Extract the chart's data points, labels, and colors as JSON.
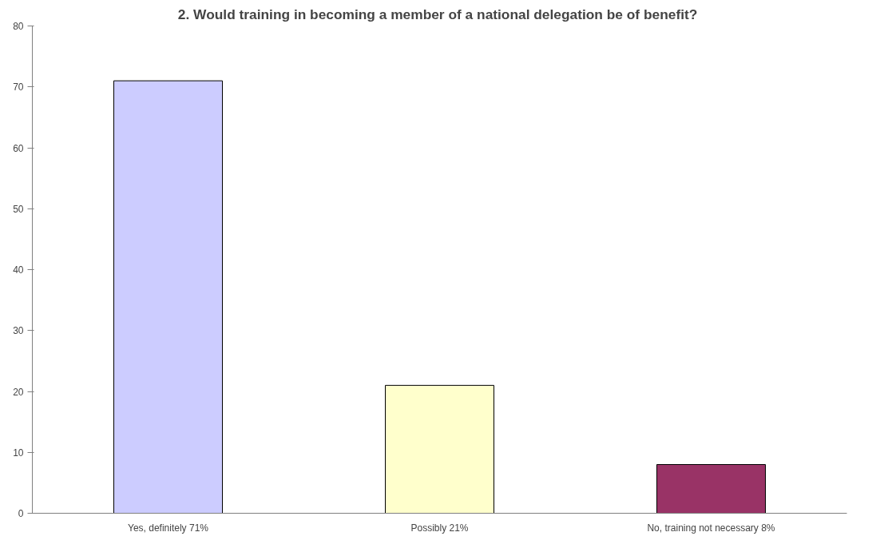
{
  "chart_data": {
    "type": "bar",
    "title": "2.  Would training in becoming a member of a national delegation be of benefit?",
    "categories": [
      "Yes, definitely 71%",
      "Possibly 21%",
      "No, training not necessary 8%"
    ],
    "values": [
      71,
      21,
      8
    ],
    "colors": [
      "#ccccff",
      "#ffffcc",
      "#993366"
    ],
    "ylim": [
      0,
      80
    ],
    "yticks": [
      0,
      10,
      20,
      30,
      40,
      50,
      60,
      70,
      80
    ]
  }
}
